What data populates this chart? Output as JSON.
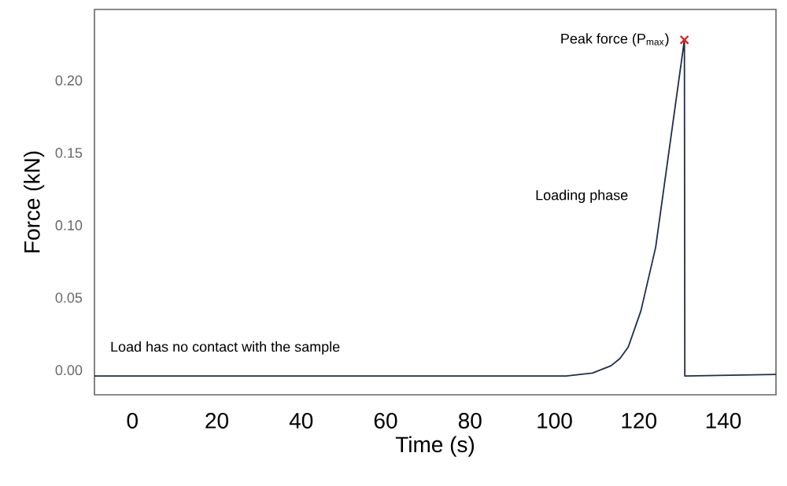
{
  "chart_data": {
    "type": "line",
    "xlabel": "Time (s)",
    "ylabel": "Force (kN)",
    "xlim": [
      -9,
      152.5
    ],
    "ylim": [
      -0.017,
      0.249
    ],
    "xticks": [
      0,
      20,
      40,
      60,
      80,
      100,
      120,
      140
    ],
    "yticks": [
      {
        "value": 0,
        "label": "0.00"
      },
      {
        "value": 0.05,
        "label": "0.05"
      },
      {
        "value": 0.1,
        "label": "0.10"
      },
      {
        "value": 0.15,
        "label": "0.15"
      },
      {
        "value": 0.2,
        "label": "0.20"
      }
    ],
    "grid": false,
    "marker": "none",
    "line_style": "solid",
    "series": [
      {
        "color": "#1f2d4e",
        "x": [
          -9,
          102.8,
          109,
          113.4,
          115.5,
          117.5,
          120.5,
          124,
          130.8,
          130.9,
          152.5
        ],
        "values": [
          -0.004,
          -0.004,
          -0.002,
          0.003,
          0.008,
          0.016,
          0.041,
          0.085,
          0.228,
          -0.004,
          -0.003
        ]
      },
      {
        "type": "scatter",
        "marker": "cross",
        "color": "#e0201b",
        "x": [
          130.8
        ],
        "values": [
          0.228
        ]
      }
    ],
    "annotations": [
      {
        "text": "Peak force (P$_{max}$)",
        "x": 130.8,
        "y": 0.228
      },
      "Loading phase",
      "Load has no contact with the sample"
    ]
  }
}
